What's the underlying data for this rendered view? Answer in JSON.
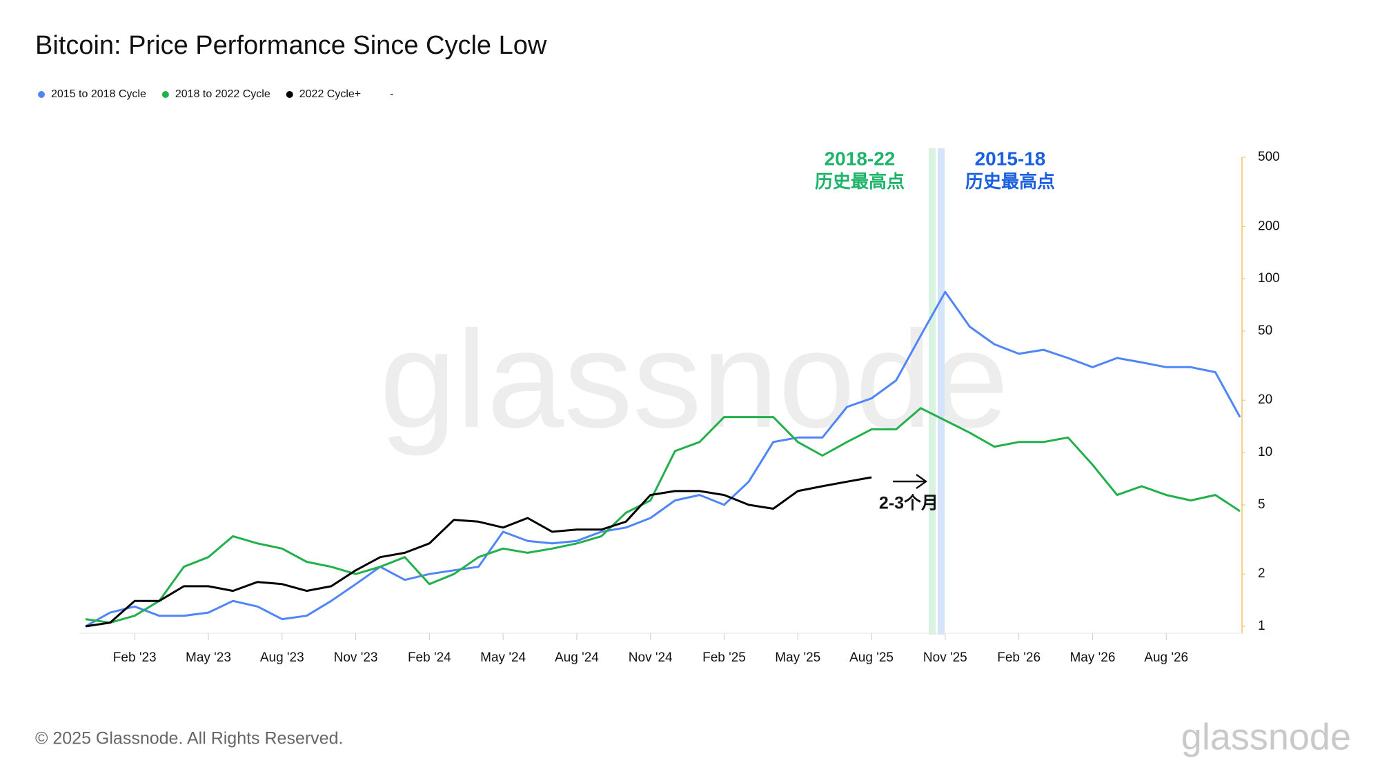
{
  "chart_data": {
    "type": "line",
    "title": "Bitcoin: Price Performance Since Cycle Low",
    "x": [
      "2022-12",
      "2023-01",
      "2023-02",
      "2023-03",
      "2023-04",
      "2023-05",
      "2023-06",
      "2023-07",
      "2023-08",
      "2023-09",
      "2023-10",
      "2023-11",
      "2023-12",
      "2024-01",
      "2024-02",
      "2024-03",
      "2024-04",
      "2024-05",
      "2024-06",
      "2024-07",
      "2024-08",
      "2024-09",
      "2024-10",
      "2024-11",
      "2024-12",
      "2025-01",
      "2025-02",
      "2025-03",
      "2025-04",
      "2025-05",
      "2025-06",
      "2025-07",
      "2025-08",
      "2025-09",
      "2025-10",
      "2025-11",
      "2025-12",
      "2026-01",
      "2026-02",
      "2026-03",
      "2026-04",
      "2026-05",
      "2026-06",
      "2026-07",
      "2026-08",
      "2026-09",
      "2026-10",
      "2026-11"
    ],
    "series": [
      {
        "name": "2015 to 2018 Cycle",
        "color": "#4f86f7",
        "values": [
          1.0,
          1.2,
          1.3,
          1.15,
          1.15,
          1.2,
          1.4,
          1.3,
          1.1,
          1.15,
          1.4,
          1.75,
          2.2,
          1.85,
          2.0,
          2.1,
          2.2,
          3.5,
          3.1,
          3.0,
          3.1,
          3.5,
          3.7,
          4.2,
          5.3,
          5.7,
          5.0,
          6.8,
          11.5,
          12.2,
          12.2,
          18.3,
          20.5,
          26,
          47,
          84,
          53,
          42,
          37,
          39,
          35,
          31,
          35,
          33,
          31,
          31,
          29,
          16
        ]
      },
      {
        "name": "2018 to 2022 Cycle",
        "color": "#22b04b",
        "values": [
          1.1,
          1.05,
          1.15,
          1.4,
          2.2,
          2.5,
          3.3,
          3.0,
          2.8,
          2.35,
          2.2,
          2.0,
          2.2,
          2.5,
          1.75,
          2.0,
          2.5,
          2.8,
          2.65,
          2.8,
          3.0,
          3.3,
          4.5,
          5.3,
          10.2,
          11.5,
          16,
          16,
          16,
          11.5,
          9.6,
          11.5,
          13.6,
          13.6,
          18,
          15.3,
          13,
          10.8,
          11.5,
          11.5,
          12.2,
          8.5,
          5.7,
          6.4,
          5.7,
          5.3,
          5.7,
          4.6
        ]
      },
      {
        "name": "2022 Cycle+",
        "color": "#000000",
        "values": [
          1.0,
          1.05,
          1.4,
          1.4,
          1.7,
          1.7,
          1.6,
          1.8,
          1.75,
          1.6,
          1.7,
          2.1,
          2.5,
          2.65,
          3.0,
          4.1,
          4.0,
          3.7,
          4.2,
          3.5,
          3.6,
          3.6,
          4.0,
          5.7,
          6.0,
          6.0,
          5.7,
          5.0,
          4.75,
          6.0,
          6.4,
          6.8,
          7.2,
          null,
          null,
          null,
          null,
          null,
          null,
          null,
          null,
          null,
          null,
          null,
          null,
          null,
          null,
          null
        ]
      },
      {
        "name": "-",
        "color": null,
        "values": [
          null,
          null,
          null,
          null,
          null,
          null,
          null,
          null,
          null,
          null,
          null,
          null,
          null,
          null,
          null,
          null,
          null,
          null,
          null,
          null,
          null,
          null,
          null,
          null,
          null,
          null,
          null,
          null,
          null,
          null,
          null,
          null,
          null,
          null,
          null,
          null,
          null,
          null,
          null,
          null,
          null,
          null,
          null,
          null,
          null,
          null,
          null,
          null
        ]
      }
    ],
    "xticks": [
      {
        "value": "2023-02",
        "label": "Feb '23"
      },
      {
        "value": "2023-05",
        "label": "May '23"
      },
      {
        "value": "2023-08",
        "label": "Aug '23"
      },
      {
        "value": "2023-11",
        "label": "Nov '23"
      },
      {
        "value": "2024-02",
        "label": "Feb '24"
      },
      {
        "value": "2024-05",
        "label": "May '24"
      },
      {
        "value": "2024-08",
        "label": "Aug '24"
      },
      {
        "value": "2024-11",
        "label": "Nov '24"
      },
      {
        "value": "2025-02",
        "label": "Feb '25"
      },
      {
        "value": "2025-05",
        "label": "May '25"
      },
      {
        "value": "2025-08",
        "label": "Aug '25"
      },
      {
        "value": "2025-11",
        "label": "Nov '25"
      },
      {
        "value": "2026-02",
        "label": "Feb '26"
      },
      {
        "value": "2026-05",
        "label": "May '26"
      },
      {
        "value": "2026-08",
        "label": "Aug '26"
      }
    ],
    "ylim": [
      1,
      500
    ],
    "yticks": [
      1,
      2,
      5,
      10,
      20,
      50,
      100,
      200,
      500
    ],
    "log_scale": true,
    "grid": false,
    "legend": "top-left",
    "annotations": [
      "2018-22",
      "历史最高点",
      "2015-18",
      "历史最高点",
      "2-3个月"
    ]
  },
  "watermark": "glassnode",
  "footer": "© 2025 Glassnode. All Rights Reserved.",
  "logo": "glassnode"
}
